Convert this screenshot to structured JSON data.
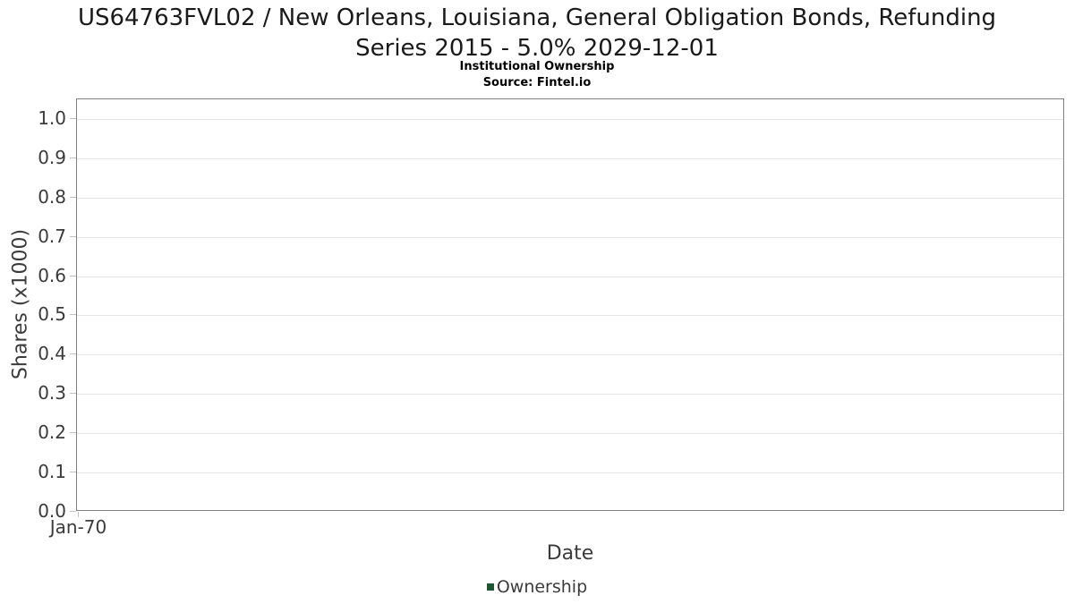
{
  "header": {
    "title_line1": "US64763FVL02 / New Orleans, Louisiana, General Obligation Bonds, Refunding",
    "title_line2": "Series 2015 - 5.0% 2029-12-01",
    "subtitle": "Institutional Ownership",
    "source": "Source: Fintel.io"
  },
  "chart_data": {
    "type": "line",
    "title": "US64763FVL02 / New Orleans, Louisiana, General Obligation Bonds, Refunding Series 2015 - 5.0% 2029-12-01",
    "subtitle": "Institutional Ownership",
    "source": "Source: Fintel.io",
    "xlabel": "Date",
    "ylabel": "Shares (x1000)",
    "x_tick_labels": [
      "Jan-70"
    ],
    "y_tick_labels": [
      "0.0",
      "0.1",
      "0.2",
      "0.3",
      "0.4",
      "0.5",
      "0.6",
      "0.7",
      "0.8",
      "0.9",
      "1.0"
    ],
    "y_tick_values": [
      0.0,
      0.1,
      0.2,
      0.3,
      0.4,
      0.5,
      0.6,
      0.7,
      0.8,
      0.9,
      1.0
    ],
    "ylim": [
      0,
      1.05
    ],
    "grid": "horizontal-only",
    "legend_position": "bottom-center",
    "series": [
      {
        "name": "Ownership",
        "color": "#1e5631",
        "points": []
      }
    ],
    "colors": {
      "plot_border": "#808080",
      "gridline": "#e6e6e6",
      "tick_mark": "#c2c2c2",
      "tick_text": "#3b3b3b",
      "axis_label_text": "#3b3b3b",
      "legend_text": "#3b3b3b",
      "title_text": "#1a1a1a",
      "subtitle_text": "#000000",
      "page_background": "#ffffff"
    }
  }
}
